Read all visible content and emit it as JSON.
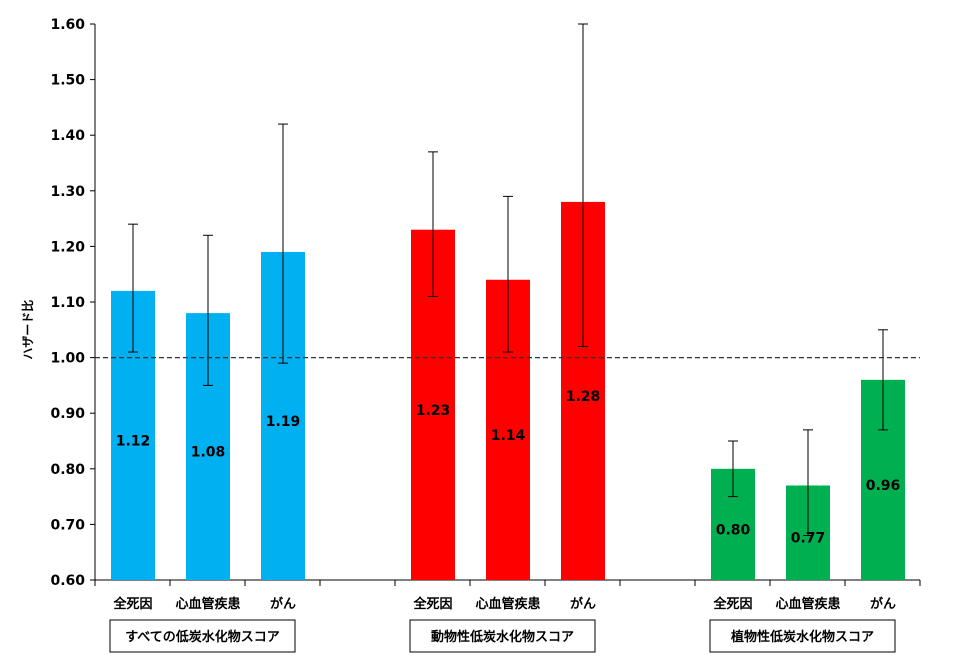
{
  "chart_data": {
    "type": "bar",
    "ylabel": "ハザード比",
    "ylim": [
      0.6,
      1.6
    ],
    "yticks": [
      0.6,
      0.7,
      0.8,
      0.9,
      1.0,
      1.1,
      1.2,
      1.3,
      1.4,
      1.5,
      1.6
    ],
    "ytick_labels": [
      "0.60",
      "0.70",
      "0.80",
      "0.90",
      "1.00",
      "1.10",
      "1.20",
      "1.30",
      "1.40",
      "1.50",
      "1.60"
    ],
    "reference_line": 1.0,
    "grid": false,
    "groups": [
      {
        "name": "すべての低炭水化物スコア",
        "color": "#00b0f0",
        "categories": [
          "全死因",
          "心血管疾患",
          "がん"
        ],
        "values": [
          1.12,
          1.08,
          1.19
        ],
        "value_labels": [
          "1.12",
          "1.08",
          "1.19"
        ],
        "ci_low": [
          1.01,
          0.95,
          0.99
        ],
        "ci_high": [
          1.24,
          1.22,
          1.42
        ]
      },
      {
        "name": "動物性低炭水化物スコア",
        "color": "#ff0000",
        "categories": [
          "全死因",
          "心血管疾患",
          "がん"
        ],
        "values": [
          1.23,
          1.14,
          1.28
        ],
        "value_labels": [
          "1.23",
          "1.14",
          "1.28"
        ],
        "ci_low": [
          1.11,
          1.01,
          1.02
        ],
        "ci_high": [
          1.37,
          1.29,
          1.6
        ]
      },
      {
        "name": "植物性低炭水化物スコア",
        "color": "#00b050",
        "categories": [
          "全死因",
          "心血管疾患",
          "がん"
        ],
        "values": [
          0.8,
          0.77,
          0.96
        ],
        "value_labels": [
          "0.80",
          "0.77",
          "0.96"
        ],
        "ci_low": [
          0.75,
          0.68,
          0.87
        ],
        "ci_high": [
          0.85,
          0.87,
          1.05
        ]
      }
    ]
  }
}
